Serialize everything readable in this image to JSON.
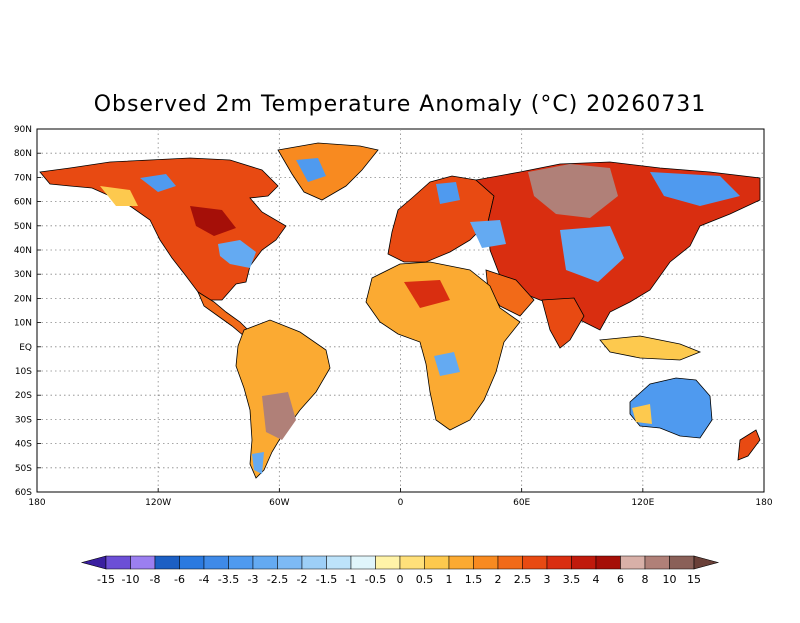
{
  "title": "Observed 2m Temperature Anomaly (°C) 20260731",
  "axes": {
    "lat_labels": [
      "90N",
      "80N",
      "70N",
      "60N",
      "50N",
      "40N",
      "30N",
      "20N",
      "10N",
      "EQ",
      "10S",
      "20S",
      "30S",
      "40S",
      "50S",
      "60S"
    ],
    "lon_labels": [
      "180",
      "120W",
      "60W",
      "0",
      "60E",
      "120E",
      "180"
    ]
  },
  "colorbar": {
    "labels": [
      "-15",
      "-10",
      "-8",
      "-6",
      "-4",
      "-3.5",
      "-3",
      "-2.5",
      "-2",
      "-1.5",
      "-1",
      "-0.5",
      "0",
      "0.5",
      "1",
      "1.5",
      "2",
      "2.5",
      "3",
      "3.5",
      "4",
      "6",
      "8",
      "10",
      "15"
    ],
    "colors": [
      "#3a1fa0",
      "#6c4fd6",
      "#9b7ff0",
      "#1c5fc4",
      "#2b7ae0",
      "#3f8ae8",
      "#4f9aef",
      "#64aaf2",
      "#7dbaf5",
      "#9dcff7",
      "#bde3fa",
      "#e0f5fb",
      "#fff3a8",
      "#ffe07a",
      "#fdc94e",
      "#fbaa32",
      "#f88a20",
      "#f26a18",
      "#e84a12",
      "#d92e10",
      "#c01a0c",
      "#a50f08",
      "#d8b0a8",
      "#b08078",
      "#8a6058",
      "#6a4038"
    ]
  }
}
